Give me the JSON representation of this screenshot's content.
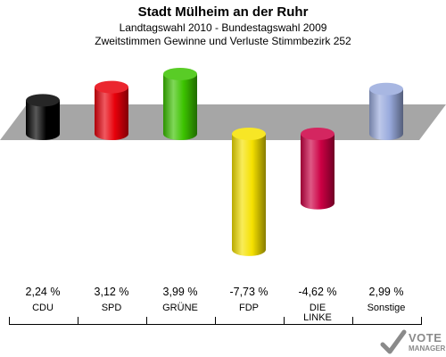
{
  "header": {
    "title": "Stadt Mülheim an der Ruhr",
    "subtitle1": "Landtagswahl 2010 - Bundestagswahl 2009",
    "subtitle2": "Zweitstimmen Gewinne und Verluste Stimmbezirk 252"
  },
  "chart_data": {
    "type": "bar",
    "categories": [
      "CDU",
      "SPD",
      "GRÜNE",
      "FDP",
      "DIE LINKE",
      "Sonstige"
    ],
    "category_lines": [
      [
        "CDU"
      ],
      [
        "SPD"
      ],
      [
        "GRÜNE"
      ],
      [
        "FDP"
      ],
      [
        "DIE",
        "LINKE"
      ],
      [
        "Sonstige"
      ]
    ],
    "values": [
      2.24,
      3.12,
      3.99,
      -7.73,
      -4.62,
      2.99
    ],
    "value_labels": [
      "2,24 %",
      "3,12 %",
      "3,99 %",
      "-7,73 %",
      "-4,62 %",
      "2,99 %"
    ],
    "colors": [
      "#000000",
      "#e8000a",
      "#3cc300",
      "#f5e100",
      "#cc0044",
      "#99aadd"
    ],
    "baseline_color": "#a6a6a6",
    "title": "",
    "xlabel": "",
    "ylabel": ""
  },
  "logo": {
    "text": "VOTE",
    "subtext": "MANAGER",
    "icon": "checkmark-ballot-icon"
  }
}
